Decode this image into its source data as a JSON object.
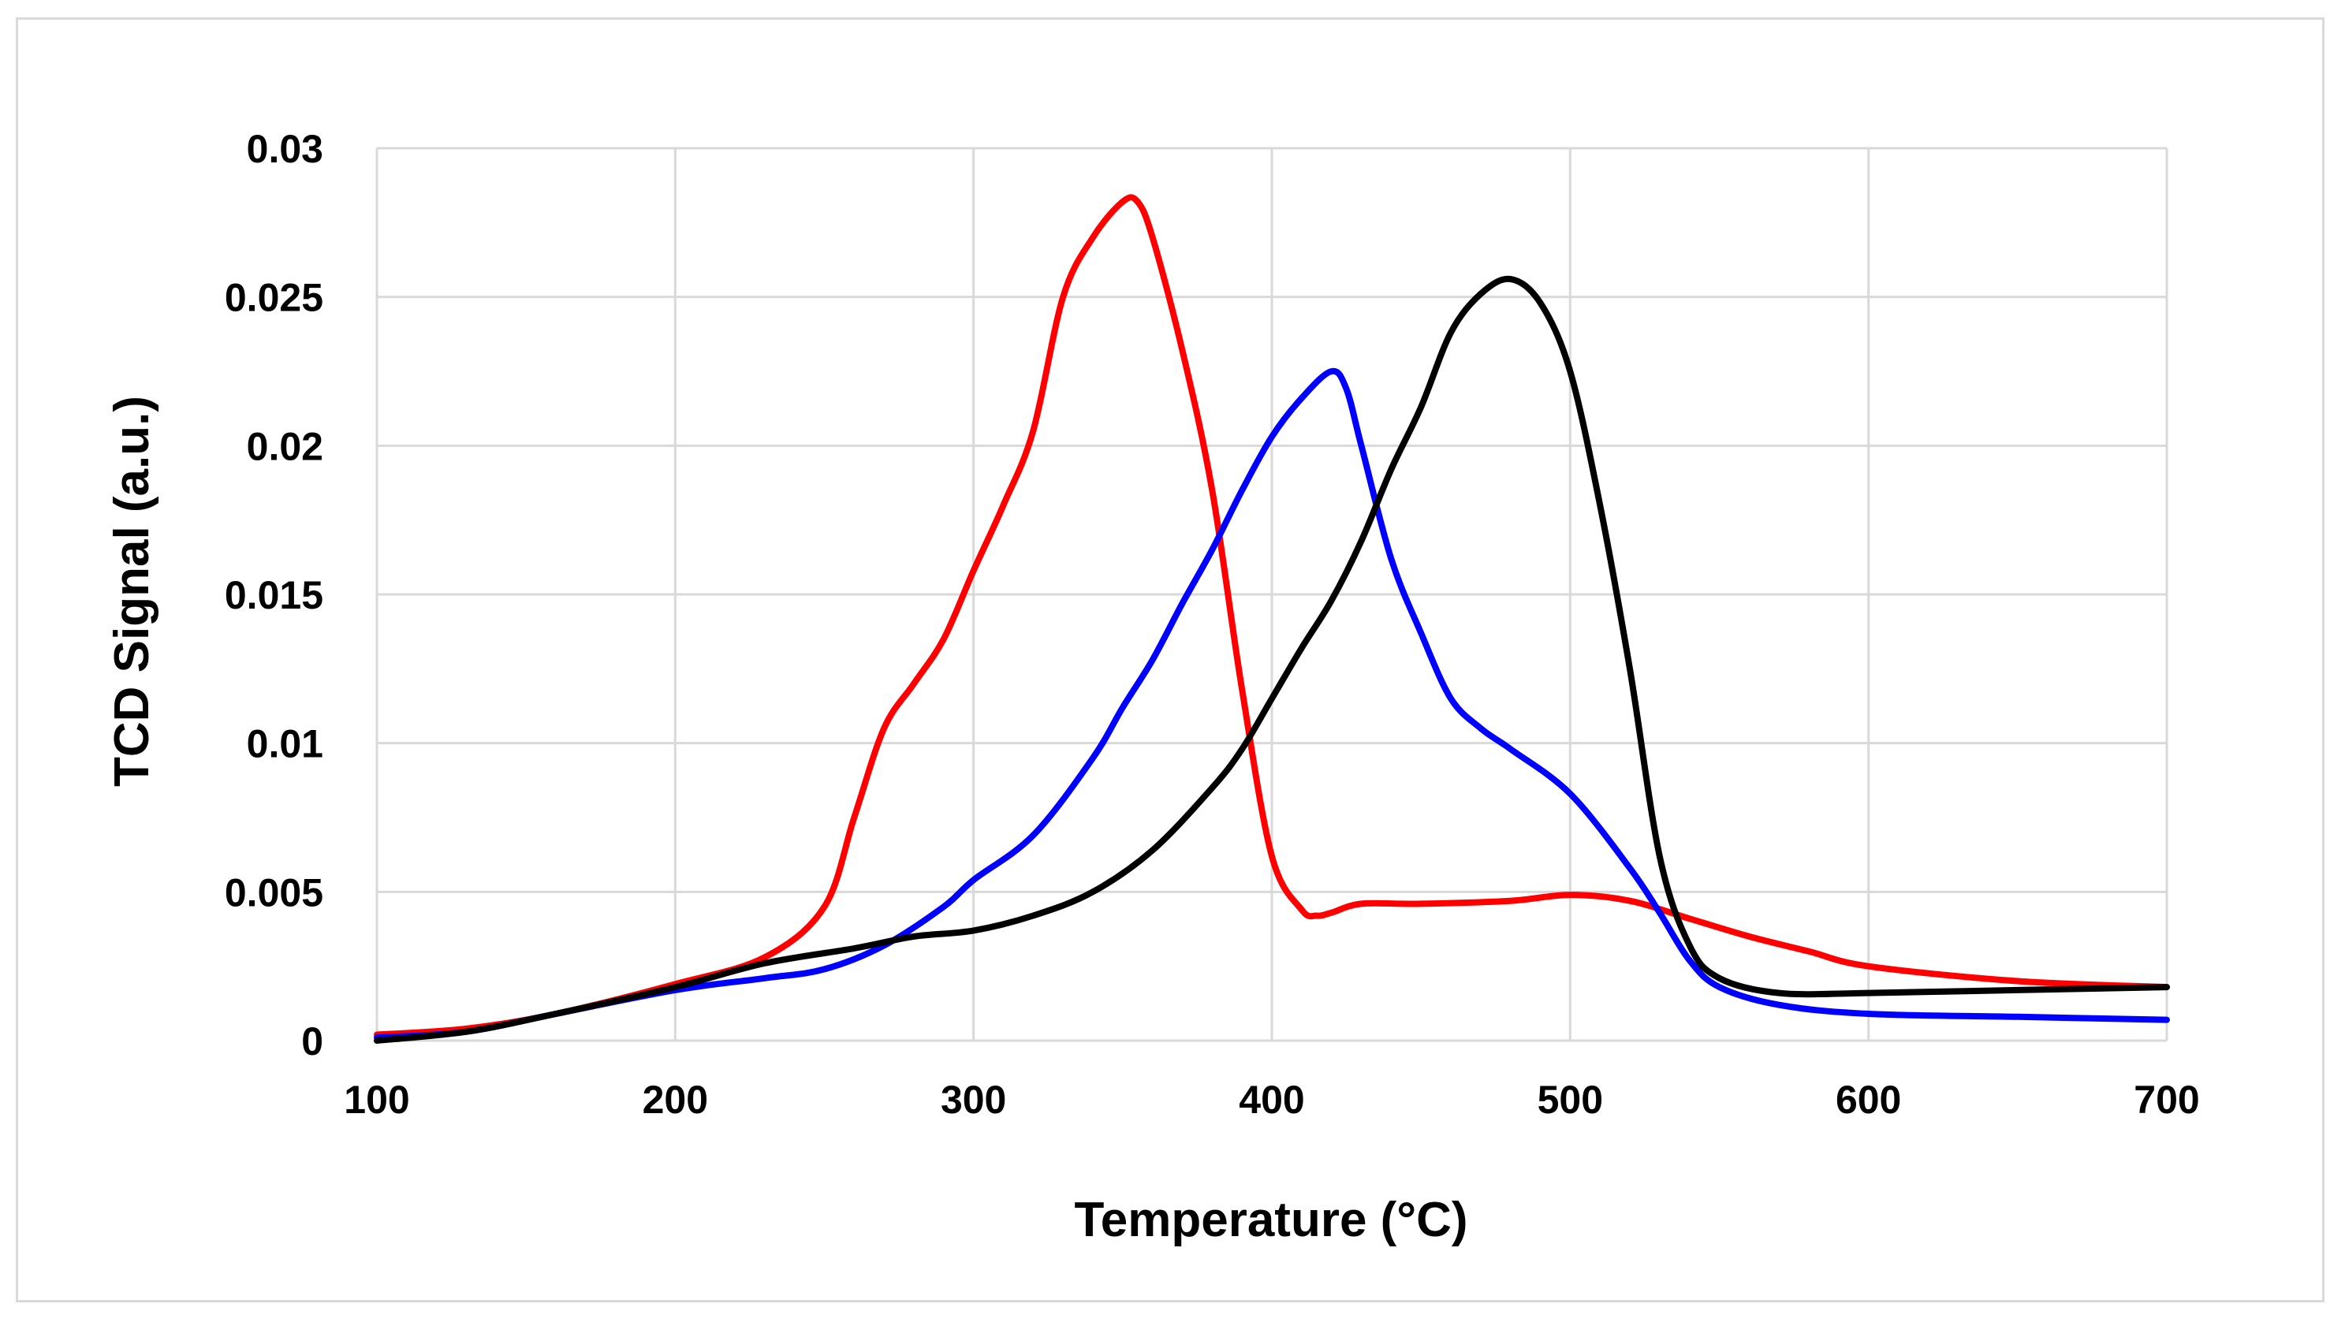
{
  "chart_data": {
    "type": "line",
    "title": "",
    "xlabel": "Temperature (°C)",
    "ylabel": "TCD Signal (a.u.)",
    "xlim": [
      100,
      700
    ],
    "ylim": [
      0,
      0.03
    ],
    "x_ticks": [
      "100",
      "200",
      "300",
      "400",
      "500",
      "600",
      "700"
    ],
    "y_ticks": [
      "0",
      "0.005",
      "0.01",
      "0.015",
      "0.02",
      "0.025",
      "0.03"
    ],
    "grid": true,
    "legend": "none",
    "series": [
      {
        "name": "red",
        "color": "#ff0000",
        "x": [
          100,
          130,
          160,
          200,
          230,
          250,
          260,
          270,
          280,
          290,
          300,
          310,
          320,
          330,
          340,
          350,
          355,
          360,
          370,
          380,
          390,
          400,
          410,
          415,
          420,
          430,
          450,
          480,
          500,
          520,
          540,
          560,
          580,
          600,
          650,
          700
        ],
        "y": [
          0.0002,
          0.0004,
          0.0009,
          0.0019,
          0.0028,
          0.0045,
          0.0075,
          0.0105,
          0.012,
          0.0135,
          0.0158,
          0.018,
          0.0205,
          0.025,
          0.027,
          0.0282,
          0.0282,
          0.027,
          0.0232,
          0.0185,
          0.0118,
          0.0062,
          0.0044,
          0.0042,
          0.0043,
          0.0046,
          0.0046,
          0.0047,
          0.0049,
          0.0047,
          0.0041,
          0.0035,
          0.003,
          0.0025,
          0.002,
          0.0018
        ]
      },
      {
        "name": "blue",
        "color": "#0000ff",
        "x": [
          100,
          130,
          160,
          200,
          230,
          250,
          270,
          290,
          300,
          320,
          340,
          350,
          360,
          370,
          380,
          390,
          400,
          410,
          420,
          425,
          430,
          440,
          450,
          460,
          470,
          480,
          500,
          520,
          530,
          540,
          550,
          570,
          600,
          650,
          700
        ],
        "y": [
          0.0001,
          0.0003,
          0.0009,
          0.0017,
          0.0021,
          0.0024,
          0.0032,
          0.0045,
          0.0054,
          0.0069,
          0.0095,
          0.0112,
          0.0128,
          0.0147,
          0.0165,
          0.0185,
          0.0203,
          0.0216,
          0.0225,
          0.0219,
          0.02,
          0.0162,
          0.0137,
          0.0115,
          0.0105,
          0.0098,
          0.0083,
          0.0058,
          0.0043,
          0.0027,
          0.0018,
          0.0012,
          0.0009,
          0.0008,
          0.0007
        ]
      },
      {
        "name": "black",
        "color": "#000000",
        "x": [
          100,
          130,
          160,
          200,
          230,
          260,
          280,
          300,
          320,
          340,
          360,
          380,
          390,
          400,
          410,
          420,
          430,
          440,
          450,
          460,
          470,
          480,
          490,
          500,
          510,
          520,
          530,
          540,
          550,
          570,
          600,
          650,
          700
        ],
        "y": [
          0.0,
          0.0003,
          0.0009,
          0.0018,
          0.0026,
          0.0031,
          0.0035,
          0.0037,
          0.0042,
          0.005,
          0.0064,
          0.0085,
          0.0098,
          0.0115,
          0.0132,
          0.0148,
          0.0168,
          0.0192,
          0.0213,
          0.0238,
          0.0251,
          0.0256,
          0.0248,
          0.0225,
          0.018,
          0.0125,
          0.0062,
          0.0032,
          0.0021,
          0.0016,
          0.0016,
          0.0017,
          0.0018
        ]
      }
    ]
  }
}
